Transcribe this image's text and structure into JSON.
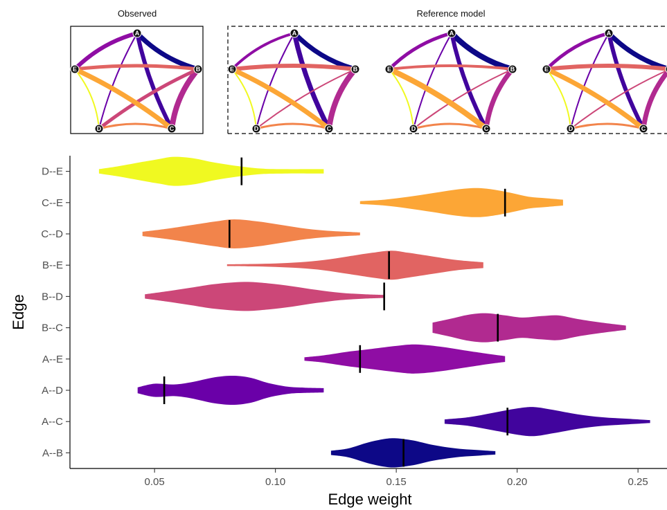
{
  "top_panels": {
    "observed_title": "Observed",
    "reference_title": "Reference model",
    "node_labels": [
      "A",
      "B",
      "C",
      "D",
      "E"
    ]
  },
  "chart_data": {
    "type": "violin",
    "xlabel": "Edge weight",
    "ylabel": "Edge",
    "xlim": [
      0.015,
      0.262
    ],
    "xticks": [
      0.05,
      0.1,
      0.15,
      0.2,
      0.25
    ],
    "xtick_labels": [
      "0.05",
      "0.10",
      "0.15",
      "0.20",
      "0.25"
    ],
    "grid": false,
    "legend": "none",
    "categories": [
      "A--B",
      "A--C",
      "A--D",
      "A--E",
      "B--C",
      "B--D",
      "B--E",
      "C--D",
      "C--E",
      "D--E"
    ],
    "series": [
      {
        "edge": "A--B",
        "color": "#0d0887",
        "observed": 0.153,
        "min": 0.123,
        "max": 0.191,
        "density": [
          [
            0.123,
            0.15
          ],
          [
            0.13,
            0.3
          ],
          [
            0.138,
            0.7
          ],
          [
            0.145,
            0.95
          ],
          [
            0.15,
            1.0
          ],
          [
            0.157,
            0.85
          ],
          [
            0.165,
            0.55
          ],
          [
            0.175,
            0.3
          ],
          [
            0.185,
            0.18
          ],
          [
            0.191,
            0.12
          ]
        ]
      },
      {
        "edge": "A--C",
        "color": "#41049d",
        "observed": 0.196,
        "min": 0.17,
        "max": 0.255,
        "density": [
          [
            0.17,
            0.15
          ],
          [
            0.18,
            0.3
          ],
          [
            0.19,
            0.6
          ],
          [
            0.2,
            0.9
          ],
          [
            0.207,
            1.0
          ],
          [
            0.215,
            0.8
          ],
          [
            0.225,
            0.5
          ],
          [
            0.235,
            0.3
          ],
          [
            0.245,
            0.2
          ],
          [
            0.255,
            0.1
          ]
        ]
      },
      {
        "edge": "A--D",
        "color": "#6a00a8",
        "observed": 0.054,
        "min": 0.043,
        "max": 0.12,
        "density": [
          [
            0.043,
            0.2
          ],
          [
            0.05,
            0.45
          ],
          [
            0.058,
            0.4
          ],
          [
            0.065,
            0.55
          ],
          [
            0.075,
            0.9
          ],
          [
            0.083,
            1.0
          ],
          [
            0.09,
            0.85
          ],
          [
            0.097,
            0.5
          ],
          [
            0.105,
            0.25
          ],
          [
            0.112,
            0.18
          ],
          [
            0.12,
            0.15
          ]
        ]
      },
      {
        "edge": "A--E",
        "color": "#8f0da4",
        "observed": 0.135,
        "min": 0.112,
        "max": 0.195,
        "density": [
          [
            0.112,
            0.12
          ],
          [
            0.12,
            0.25
          ],
          [
            0.13,
            0.5
          ],
          [
            0.14,
            0.7
          ],
          [
            0.15,
            0.9
          ],
          [
            0.158,
            1.0
          ],
          [
            0.168,
            0.85
          ],
          [
            0.178,
            0.6
          ],
          [
            0.188,
            0.35
          ],
          [
            0.195,
            0.2
          ]
        ]
      },
      {
        "edge": "B--C",
        "color": "#b12a90",
        "observed": 0.192,
        "min": 0.165,
        "max": 0.245,
        "density": [
          [
            0.165,
            0.35
          ],
          [
            0.172,
            0.6
          ],
          [
            0.18,
            0.9
          ],
          [
            0.187,
            1.0
          ],
          [
            0.195,
            0.85
          ],
          [
            0.202,
            0.7
          ],
          [
            0.21,
            0.8
          ],
          [
            0.217,
            0.85
          ],
          [
            0.225,
            0.6
          ],
          [
            0.235,
            0.35
          ],
          [
            0.245,
            0.15
          ]
        ]
      },
      {
        "edge": "B--D",
        "color": "#cc4778",
        "observed": 0.145,
        "min": 0.046,
        "max": 0.145,
        "density": [
          [
            0.046,
            0.15
          ],
          [
            0.055,
            0.35
          ],
          [
            0.065,
            0.6
          ],
          [
            0.075,
            0.85
          ],
          [
            0.087,
            1.0
          ],
          [
            0.097,
            0.9
          ],
          [
            0.107,
            0.7
          ],
          [
            0.117,
            0.45
          ],
          [
            0.127,
            0.25
          ],
          [
            0.137,
            0.15
          ],
          [
            0.145,
            0.1
          ]
        ]
      },
      {
        "edge": "B--E",
        "color": "#e16462",
        "observed": 0.147,
        "min": 0.08,
        "max": 0.186,
        "density": [
          [
            0.08,
            0.06
          ],
          [
            0.09,
            0.08
          ],
          [
            0.1,
            0.12
          ],
          [
            0.11,
            0.2
          ],
          [
            0.12,
            0.35
          ],
          [
            0.13,
            0.6
          ],
          [
            0.14,
            0.85
          ],
          [
            0.148,
            1.0
          ],
          [
            0.155,
            0.85
          ],
          [
            0.165,
            0.6
          ],
          [
            0.175,
            0.35
          ],
          [
            0.186,
            0.2
          ]
        ]
      },
      {
        "edge": "C--D",
        "color": "#f2844b",
        "observed": 0.081,
        "min": 0.045,
        "max": 0.135,
        "density": [
          [
            0.045,
            0.15
          ],
          [
            0.055,
            0.35
          ],
          [
            0.065,
            0.6
          ],
          [
            0.075,
            0.85
          ],
          [
            0.083,
            1.0
          ],
          [
            0.093,
            0.85
          ],
          [
            0.103,
            0.6
          ],
          [
            0.113,
            0.35
          ],
          [
            0.123,
            0.2
          ],
          [
            0.135,
            0.1
          ]
        ]
      },
      {
        "edge": "C--E",
        "color": "#fca636",
        "observed": 0.195,
        "min": 0.135,
        "max": 0.219,
        "density": [
          [
            0.135,
            0.1
          ],
          [
            0.145,
            0.2
          ],
          [
            0.155,
            0.4
          ],
          [
            0.165,
            0.65
          ],
          [
            0.175,
            0.9
          ],
          [
            0.183,
            1.0
          ],
          [
            0.19,
            0.9
          ],
          [
            0.198,
            0.65
          ],
          [
            0.205,
            0.4
          ],
          [
            0.212,
            0.3
          ],
          [
            0.219,
            0.2
          ]
        ]
      },
      {
        "edge": "D--E",
        "color": "#f0f921",
        "observed": 0.086,
        "min": 0.027,
        "max": 0.12,
        "density": [
          [
            0.027,
            0.15
          ],
          [
            0.035,
            0.35
          ],
          [
            0.045,
            0.65
          ],
          [
            0.052,
            0.85
          ],
          [
            0.058,
            1.0
          ],
          [
            0.066,
            0.9
          ],
          [
            0.075,
            0.6
          ],
          [
            0.085,
            0.35
          ],
          [
            0.095,
            0.18
          ],
          [
            0.105,
            0.15
          ],
          [
            0.113,
            0.15
          ],
          [
            0.12,
            0.15
          ]
        ]
      }
    ]
  }
}
